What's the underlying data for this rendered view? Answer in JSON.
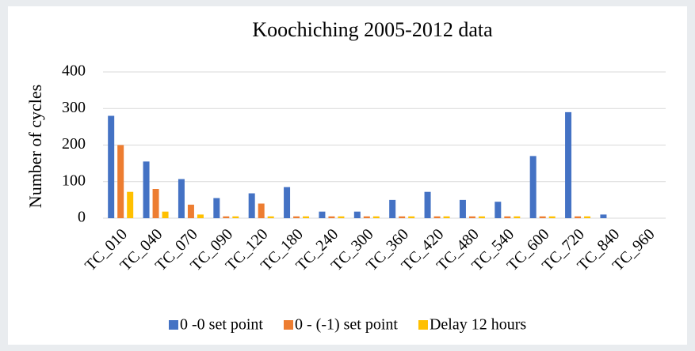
{
  "chart_data": {
    "type": "bar",
    "title": "Koochiching 2005-2012 data",
    "y_label": "Number of cycles",
    "categories": [
      "TC_010",
      "TC_040",
      "TC_070",
      "TC_090",
      "TC_120",
      "TC_180",
      "TC_240",
      "TC_300",
      "TC_360",
      "TC_420",
      "TC_480",
      "TC_540",
      "TC_600",
      "TC_720",
      "TC_840",
      "TC_960"
    ],
    "series": [
      {
        "name": "0 -0 set point",
        "color": "#4472c4",
        "values": [
          280,
          155,
          107,
          55,
          68,
          85,
          18,
          18,
          50,
          72,
          50,
          45,
          170,
          290,
          10,
          0
        ]
      },
      {
        "name": "0 - (-1) set point",
        "color": "#ed7d31",
        "values": [
          200,
          80,
          37,
          5,
          40,
          5,
          5,
          5,
          5,
          5,
          5,
          5,
          5,
          5,
          0,
          0
        ]
      },
      {
        "name": "Delay 12 hours",
        "color": "#ffc000",
        "values": [
          72,
          18,
          10,
          5,
          5,
          5,
          5,
          5,
          5,
          5,
          5,
          5,
          5,
          5,
          0,
          0
        ]
      }
    ],
    "ylim": [
      0,
      400
    ],
    "yticks": [
      0,
      100,
      200,
      300,
      400
    ],
    "grid": true
  }
}
